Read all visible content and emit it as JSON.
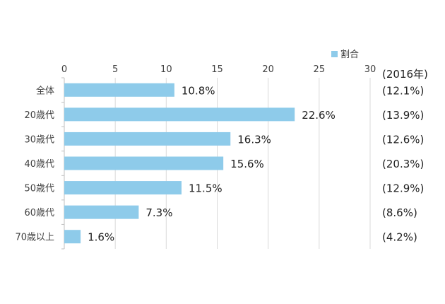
{
  "chart_data": {
    "type": "bar",
    "orientation": "horizontal",
    "categories": [
      "全体",
      "20歳代",
      "30歳代",
      "40歳代",
      "50歳代",
      "60歳代",
      "70歳以上"
    ],
    "series": [
      {
        "name": "割合",
        "values": [
          10.8,
          22.6,
          16.3,
          15.6,
          11.5,
          7.3,
          1.6
        ],
        "labels": [
          "10.8%",
          "22.6%",
          "16.3%",
          "15.6%",
          "11.5%",
          "7.3%",
          "1.6%"
        ],
        "color": "#8ecbea"
      }
    ],
    "xlim": [
      0,
      30
    ],
    "xticks": [
      "0",
      "5",
      "10",
      "15",
      "20",
      "25",
      "30"
    ],
    "axis_position": "top",
    "grid": true,
    "legend_position": "top-right",
    "comparison_header": "(2016年)",
    "comparison_labels": [
      "(12.1%)",
      "(13.9%)",
      "(12.6%)",
      "(20.3%)",
      "(12.9%)",
      "(8.6%)",
      "(4.2%)"
    ]
  }
}
